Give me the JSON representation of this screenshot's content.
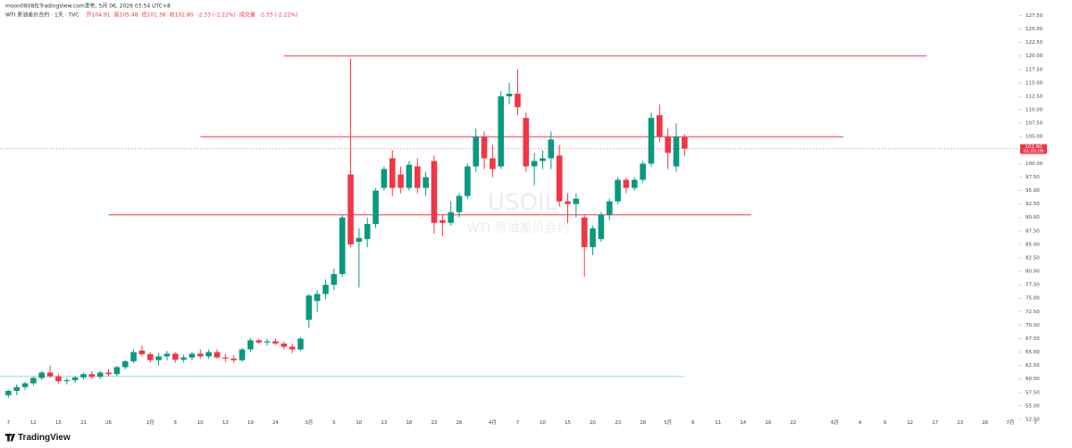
{
  "header": {
    "publisher": "moon0808在TradingView.com发布, 5月 06, 2026 03:54 UTC+8",
    "symbol": "WTI 原油差价合约 · 1天 · TVC",
    "legend_items": [
      "开104.91",
      "高105.48",
      "低101.38",
      "收102.80",
      "-2.33 (-2.22%)",
      "成交量",
      "-2.33 (-2.22%)"
    ]
  },
  "watermark": {
    "ticker": "USOIL",
    "name": "WTI 原油差价合约"
  },
  "footer": {
    "brand": "TradingView"
  },
  "chart_data": {
    "type": "candlestick",
    "up_color": "#089981",
    "down_color": "#f23645",
    "open": [
      57.0,
      57.8,
      58.5,
      59.2,
      60.2,
      61.2,
      60.5,
      59.6,
      59.8,
      60.3,
      60.9,
      60.4,
      61.2,
      60.9,
      62.2,
      63.3,
      65.3,
      64.6,
      63.5,
      64.2,
      64.7,
      63.6,
      64.0,
      64.7,
      64.2,
      65.0,
      64.0,
      63.8,
      63.5,
      65.5,
      67.2,
      66.8,
      67.0,
      66.6,
      66.0,
      65.5,
      71.0,
      74.5,
      75.8,
      77.5,
      79.5,
      98.0,
      85.5,
      86.0,
      88.8,
      95.5,
      101.0,
      98.0,
      95.5,
      99.5,
      95.5,
      100.5,
      89.5,
      89.0,
      91.0,
      94.0,
      99.5,
      105.0,
      101.0,
      99.5,
      112.5,
      113.0,
      108.5,
      99.5,
      100.5,
      101.0,
      101.5,
      93.0,
      92.5,
      90.0,
      84.5,
      86.0,
      90.5,
      93.0,
      97.0,
      95.5,
      97.0,
      100.0,
      109.0,
      105.0,
      99.5,
      104.91
    ],
    "high": [
      58.0,
      59.0,
      59.5,
      60.5,
      61.5,
      62.5,
      61.0,
      60.2,
      60.6,
      61.2,
      61.5,
      61.5,
      61.8,
      62.5,
      63.5,
      65.5,
      66.2,
      65.0,
      64.8,
      65.2,
      65.0,
      64.5,
      65.0,
      65.5,
      65.5,
      65.5,
      64.6,
      64.4,
      65.8,
      67.6,
      67.5,
      67.5,
      67.5,
      67.0,
      66.6,
      67.8,
      75.8,
      76.5,
      78.5,
      80.5,
      90.5,
      119.5,
      88.0,
      90.0,
      95.5,
      99.5,
      102.5,
      99.5,
      100.5,
      101.0,
      98.5,
      101.5,
      90.5,
      93.0,
      94.5,
      100.0,
      106.5,
      106.0,
      103.5,
      113.5,
      115.0,
      117.5,
      109.5,
      102.0,
      102.5,
      106.0,
      103.5,
      94.5,
      94.5,
      90.5,
      88.5,
      91.0,
      93.5,
      97.5,
      97.5,
      97.5,
      100.5,
      109.5,
      111.0,
      106.5,
      107.5,
      105.48
    ],
    "low": [
      56.5,
      57.0,
      58.0,
      58.8,
      59.8,
      60.2,
      59.2,
      59.0,
      59.3,
      59.9,
      60.0,
      60.0,
      60.5,
      60.5,
      61.8,
      62.9,
      64.3,
      63.0,
      62.5,
      63.5,
      63.0,
      63.0,
      63.5,
      63.8,
      63.8,
      63.8,
      63.2,
      63.0,
      63.2,
      65.0,
      66.5,
      66.2,
      66.3,
      65.5,
      64.8,
      65.2,
      69.5,
      72.5,
      74.8,
      76.5,
      79.0,
      84.5,
      77.0,
      84.5,
      88.0,
      95.0,
      94.0,
      94.5,
      95.0,
      94.5,
      94.0,
      87.0,
      86.5,
      88.5,
      90.0,
      93.5,
      98.5,
      99.0,
      97.5,
      99.0,
      111.0,
      109.0,
      98.5,
      96.0,
      99.0,
      99.0,
      92.0,
      89.0,
      90.0,
      79.0,
      83.0,
      85.5,
      89.5,
      92.5,
      94.5,
      95.0,
      96.5,
      99.5,
      104.0,
      99.0,
      98.5,
      101.38
    ],
    "close": [
      57.8,
      58.5,
      59.2,
      60.2,
      61.2,
      60.5,
      59.6,
      59.8,
      60.3,
      60.9,
      60.4,
      61.2,
      60.9,
      62.2,
      63.3,
      65.0,
      64.6,
      63.5,
      64.2,
      64.7,
      63.6,
      64.0,
      64.7,
      64.2,
      65.0,
      64.0,
      63.8,
      63.5,
      65.5,
      67.2,
      66.8,
      67.0,
      66.6,
      66.0,
      65.5,
      67.5,
      75.5,
      75.8,
      77.5,
      79.5,
      90.0,
      85.0,
      86.2,
      88.8,
      95.0,
      99.0,
      95.5,
      95.5,
      99.8,
      95.5,
      97.5,
      89.0,
      89.0,
      91.0,
      94.0,
      99.5,
      105.0,
      101.0,
      99.0,
      112.5,
      113.0,
      110.5,
      99.5,
      100.5,
      101.0,
      104.5,
      93.0,
      92.5,
      93.5,
      84.5,
      88.0,
      90.5,
      93.0,
      97.0,
      95.5,
      97.0,
      100.0,
      108.5,
      105.0,
      102.0,
      105.0,
      102.8
    ],
    "levels": [
      {
        "price": 120.0,
        "from": 33,
        "to": 110,
        "color": "#f23645"
      },
      {
        "price": 105.0,
        "from": 23,
        "to": 100,
        "color": "#f23645"
      },
      {
        "price": 90.5,
        "from": 12,
        "to": 89,
        "color": "#f23645"
      },
      {
        "price": 60.5,
        "from": -1,
        "to": 81,
        "color": "#9fd8cf"
      }
    ],
    "last_price": {
      "value": 102.8,
      "label": "102.80"
    },
    "countdown": "01:05:09",
    "xlim": [
      -1,
      127.4
    ],
    "ylim": [
      51.5,
      130.4
    ],
    "xticks": [
      {
        "value": 0,
        "label": "7"
      },
      {
        "value": 3,
        "label": "12"
      },
      {
        "value": 6,
        "label": "15"
      },
      {
        "value": 9,
        "label": "21"
      },
      {
        "value": 12,
        "label": "26"
      },
      {
        "value": 17,
        "label": "2月"
      },
      {
        "value": 20,
        "label": "5"
      },
      {
        "value": 23,
        "label": "10"
      },
      {
        "value": 26,
        "label": "13"
      },
      {
        "value": 29,
        "label": "19"
      },
      {
        "value": 32,
        "label": "24"
      },
      {
        "value": 36,
        "label": "3月"
      },
      {
        "value": 39,
        "label": "5"
      },
      {
        "value": 42,
        "label": "10"
      },
      {
        "value": 45,
        "label": "13"
      },
      {
        "value": 48,
        "label": "18"
      },
      {
        "value": 51,
        "label": "23"
      },
      {
        "value": 54,
        "label": "26"
      },
      {
        "value": 58,
        "label": "4月"
      },
      {
        "value": 61,
        "label": "7"
      },
      {
        "value": 64,
        "label": "10"
      },
      {
        "value": 67,
        "label": "15"
      },
      {
        "value": 70,
        "label": "20"
      },
      {
        "value": 73,
        "label": "23"
      },
      {
        "value": 76,
        "label": "28"
      },
      {
        "value": 79,
        "label": "5月"
      },
      {
        "value": 82,
        "label": "6"
      },
      {
        "value": 85,
        "label": "11"
      },
      {
        "value": 88,
        "label": "14"
      },
      {
        "value": 91,
        "label": "19"
      },
      {
        "value": 94,
        "label": "22"
      },
      {
        "value": 99,
        "label": "6月"
      },
      {
        "value": 102,
        "label": "4"
      },
      {
        "value": 105,
        "label": "9"
      },
      {
        "value": 108,
        "label": "12"
      },
      {
        "value": 111,
        "label": "17"
      },
      {
        "value": 114,
        "label": "23"
      },
      {
        "value": 117,
        "label": "26"
      },
      {
        "value": 120,
        "label": "7月"
      },
      {
        "value": 123,
        "label": "7"
      }
    ],
    "yticks": [
      {
        "value": 52.5,
        "label": "52.50"
      },
      {
        "value": 55,
        "label": "55.00"
      },
      {
        "value": 57.5,
        "label": "57.50"
      },
      {
        "value": 60,
        "label": "60.00"
      },
      {
        "value": 62.5,
        "label": "62.50"
      },
      {
        "value": 65,
        "label": "65.00"
      },
      {
        "value": 67.5,
        "label": "67.50"
      },
      {
        "value": 70,
        "label": "70.00"
      },
      {
        "value": 72.5,
        "label": "72.50"
      },
      {
        "value": 75,
        "label": "75.00"
      },
      {
        "value": 77.5,
        "label": "77.50"
      },
      {
        "value": 80,
        "label": "80.00"
      },
      {
        "value": 82.5,
        "label": "82.50"
      },
      {
        "value": 85,
        "label": "85.00"
      },
      {
        "value": 87.5,
        "label": "87.50"
      },
      {
        "value": 90,
        "label": "90.00"
      },
      {
        "value": 92.5,
        "label": "92.50"
      },
      {
        "value": 95,
        "label": "95.00"
      },
      {
        "value": 97.5,
        "label": "97.50"
      },
      {
        "value": 100,
        "label": "100.00"
      },
      {
        "value": 102.5,
        "label": "102.50"
      },
      {
        "value": 105,
        "label": "105.00"
      },
      {
        "value": 107.5,
        "label": "107.50"
      },
      {
        "value": 110,
        "label": "110.00"
      },
      {
        "value": 112.5,
        "label": "112.50"
      },
      {
        "value": 115,
        "label": "115.00"
      },
      {
        "value": 117.5,
        "label": "117.50"
      },
      {
        "value": 120,
        "label": "120.00"
      },
      {
        "value": 122.5,
        "label": "122.50"
      },
      {
        "value": 125,
        "label": "125.00"
      },
      {
        "value": 127.5,
        "label": "127.50"
      }
    ]
  }
}
